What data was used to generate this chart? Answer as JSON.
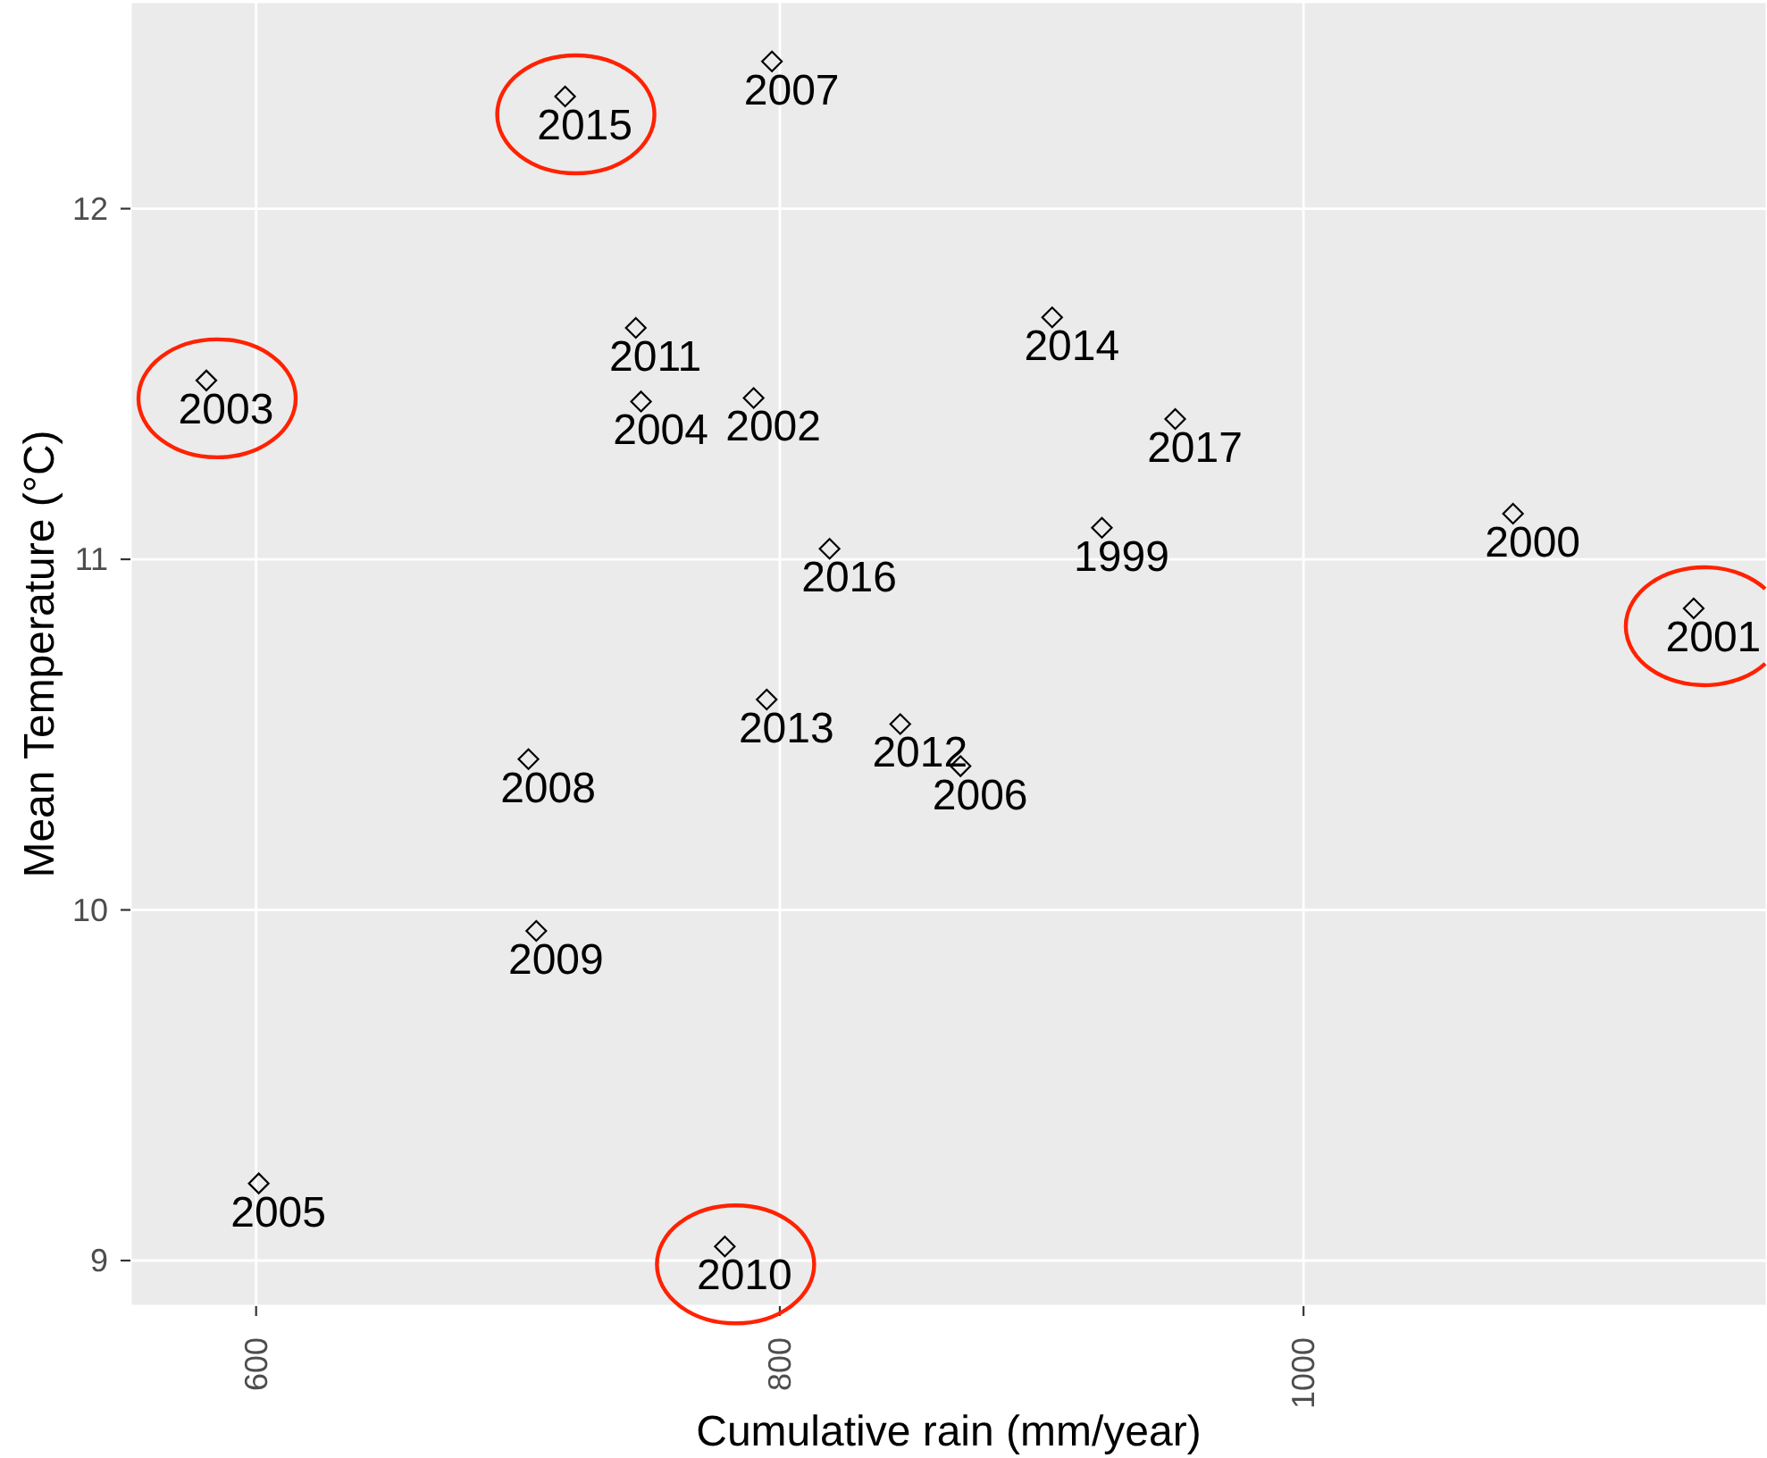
{
  "chart_data": {
    "type": "scatter",
    "xlabel": "Cumulative rain (mm/year)",
    "ylabel": "Mean Temperature (°C)",
    "x": [
      923,
      1080,
      1149,
      790,
      581,
      747,
      601,
      869,
      797,
      704,
      707,
      779,
      745,
      846,
      795,
      904,
      718,
      819,
      951
    ],
    "series": [
      {
        "color": "#000000",
        "values": [
          11.09,
          11.13,
          10.86,
          11.46,
          11.51,
          11.45,
          9.22,
          10.41,
          12.42,
          10.43,
          9.94,
          9.04,
          11.66,
          10.53,
          10.6,
          11.69,
          12.32,
          11.03,
          11.4
        ]
      }
    ],
    "annotations": [
      {
        "text": "1999",
        "x": 923,
        "y": 11.09
      },
      {
        "text": "2000",
        "x": 1080,
        "y": 11.13
      },
      {
        "text": "2001",
        "x": 1149,
        "y": 10.86
      },
      {
        "text": "2002",
        "x": 790,
        "y": 11.46
      },
      {
        "text": "2003",
        "x": 581,
        "y": 11.51
      },
      {
        "text": "2004",
        "x": 747,
        "y": 11.45
      },
      {
        "text": "2005",
        "x": 601,
        "y": 9.22
      },
      {
        "text": "2006",
        "x": 869,
        "y": 10.41
      },
      {
        "text": "2007",
        "x": 797,
        "y": 12.42
      },
      {
        "text": "2008",
        "x": 704,
        "y": 10.43
      },
      {
        "text": "2009",
        "x": 707,
        "y": 9.94
      },
      {
        "text": "2010",
        "x": 779,
        "y": 9.04
      },
      {
        "text": "2011",
        "x": 745,
        "y": 11.66
      },
      {
        "text": "2012",
        "x": 846,
        "y": 10.53
      },
      {
        "text": "2013",
        "x": 795,
        "y": 10.6
      },
      {
        "text": "2014",
        "x": 904,
        "y": 11.69
      },
      {
        "text": "2015",
        "x": 718,
        "y": 12.32
      },
      {
        "text": "2016",
        "x": 819,
        "y": 11.03
      },
      {
        "text": "2017",
        "x": 951,
        "y": 11.4
      }
    ],
    "xlim": [
      552,
      1177
    ],
    "ylim": [
      8.87,
      12.59
    ],
    "xticks": [
      600,
      800,
      1000
    ],
    "yticks": [
      9,
      10,
      11,
      12
    ],
    "grid": true,
    "marker": "diamond"
  }
}
